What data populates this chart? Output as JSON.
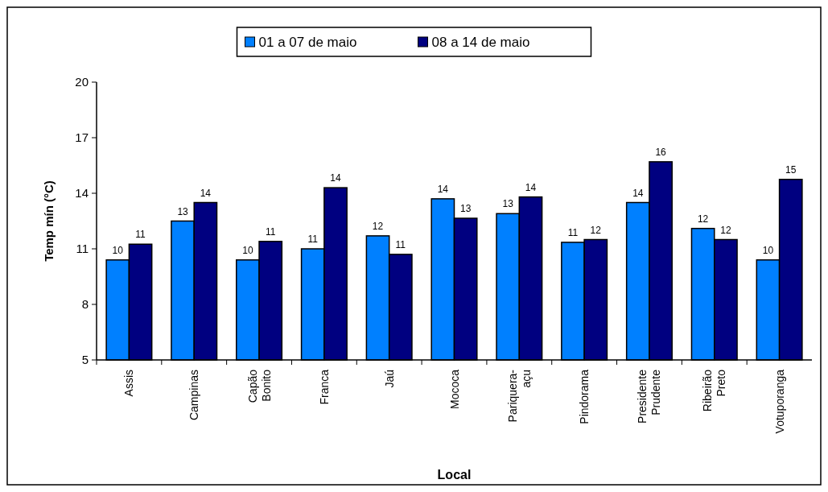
{
  "chart_data": {
    "type": "bar",
    "xlabel": "Local",
    "ylabel": "Temp mín (°C)",
    "categories": [
      "Assis",
      "Campinas",
      "Capão Bonito",
      "Franca",
      "Jaú",
      "Mococa",
      "Pariquera-açu",
      "Pindorama",
      "Presidente Prudente",
      "Ribeirão Preto",
      "Votuporanga"
    ],
    "series": [
      {
        "name": "01 a 07 de maio",
        "color": "#0080ff",
        "values": [
          10.4,
          12.5,
          10.4,
          11.0,
          11.7,
          13.7,
          12.9,
          11.35,
          13.5,
          12.1,
          10.4
        ],
        "value_labels": [
          "10",
          "13",
          "10",
          "11",
          "12",
          "14",
          "13",
          "11",
          "14",
          "12",
          "10"
        ]
      },
      {
        "name": "08 a 14 de maio",
        "color": "#000080",
        "values": [
          11.25,
          13.5,
          11.4,
          14.3,
          10.7,
          12.65,
          13.8,
          11.5,
          15.7,
          11.5,
          14.75
        ],
        "value_labels": [
          "11",
          "14",
          "11",
          "14",
          "11",
          "13",
          "14",
          "12",
          "16",
          "12",
          "15"
        ]
      }
    ],
    "ylim": [
      5,
      20
    ],
    "yticks": [
      5,
      8,
      11,
      14,
      17,
      20
    ],
    "grid": false,
    "legend": "top"
  }
}
